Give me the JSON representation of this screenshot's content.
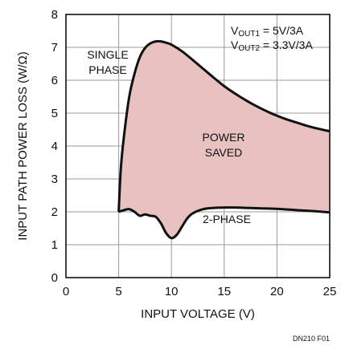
{
  "chart_data": {
    "type": "area",
    "xlabel": "INPUT VOLTAGE (V)",
    "ylabel": "INPUT PATH POWER LOSS (W/Ω)",
    "xlim": [
      0,
      25
    ],
    "ylim": [
      0,
      8
    ],
    "xticks": [
      "0",
      "5",
      "10",
      "15",
      "20",
      "25"
    ],
    "yticks": [
      "0",
      "1",
      "2",
      "3",
      "4",
      "5",
      "6",
      "7",
      "8"
    ],
    "grid": true,
    "fill_color": "#e7c2c1",
    "line_color": "#111111",
    "series": [
      {
        "name": "SINGLE PHASE",
        "x": [
          5,
          5.2,
          5.5,
          6,
          6.5,
          7,
          7.5,
          8,
          8.5,
          9,
          9.5,
          10,
          11,
          12,
          13,
          14,
          15,
          16,
          17,
          18,
          19,
          20,
          21,
          22,
          23,
          24,
          25
        ],
        "y": [
          2.0,
          3.3,
          4.3,
          5.5,
          6.2,
          6.7,
          6.98,
          7.12,
          7.18,
          7.18,
          7.14,
          7.08,
          6.88,
          6.62,
          6.35,
          6.08,
          5.82,
          5.6,
          5.4,
          5.22,
          5.06,
          4.92,
          4.8,
          4.7,
          4.6,
          4.52,
          4.45
        ]
      },
      {
        "name": "2-PHASE",
        "x": [
          5,
          5.5,
          6,
          6.5,
          7,
          7.5,
          8,
          8.5,
          9,
          9.5,
          10,
          10.5,
          11,
          11.5,
          12,
          13,
          14,
          15,
          16,
          17,
          18,
          19,
          20,
          21,
          22,
          23,
          24,
          25
        ],
        "y": [
          2.0,
          2.05,
          2.08,
          2.0,
          1.88,
          1.92,
          1.88,
          1.85,
          1.65,
          1.35,
          1.2,
          1.3,
          1.55,
          1.8,
          1.95,
          2.08,
          2.12,
          2.13,
          2.13,
          2.12,
          2.11,
          2.1,
          2.09,
          2.07,
          2.05,
          2.03,
          2.01,
          1.98
        ]
      }
    ],
    "annotations": [
      {
        "id": "single",
        "lines": [
          "SINGLE",
          "PHASE"
        ]
      },
      {
        "id": "saved",
        "lines": [
          "POWER",
          "SAVED"
        ]
      },
      {
        "id": "two",
        "lines": [
          "2-PHASE"
        ]
      }
    ],
    "legend_lines": [
      {
        "prefix": "V",
        "sub": "OUT1",
        "value": " = 5V/3A"
      },
      {
        "prefix": "V",
        "sub": "OUT2",
        "value": " = 3.3V/3A"
      }
    ],
    "figure_id": "DN210 F01"
  }
}
